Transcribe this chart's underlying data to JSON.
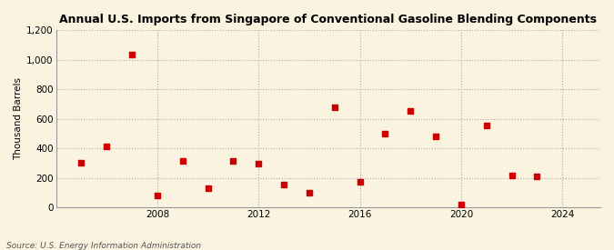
{
  "title": "Annual U.S. Imports from Singapore of Conventional Gasoline Blending Components",
  "ylabel": "Thousand Barrels",
  "source": "Source: U.S. Energy Information Administration",
  "background_color": "#faf3e0",
  "plot_background_color": "#faf3e0",
  "marker_color": "#cc0000",
  "marker_size": 18,
  "years": [
    2005,
    2006,
    2007,
    2008,
    2009,
    2010,
    2011,
    2012,
    2013,
    2014,
    2015,
    2016,
    2017,
    2018,
    2019,
    2020,
    2021,
    2022,
    2023
  ],
  "values": [
    300,
    415,
    1035,
    80,
    315,
    130,
    315,
    295,
    155,
    100,
    680,
    170,
    500,
    655,
    480,
    20,
    555,
    215,
    210
  ],
  "xlim": [
    2004.0,
    2025.5
  ],
  "ylim": [
    0,
    1200
  ],
  "yticks": [
    0,
    200,
    400,
    600,
    800,
    1000,
    1200
  ],
  "ytick_labels": [
    "0",
    "200",
    "400",
    "600",
    "800",
    "1,000",
    "1,200"
  ],
  "xticks": [
    2008,
    2012,
    2016,
    2020,
    2024
  ],
  "grid_color": "#aaaaaa",
  "grid_linestyle": ":",
  "grid_linewidth": 0.8,
  "title_fontsize": 9.0,
  "ylabel_fontsize": 7.5,
  "tick_fontsize": 7.5,
  "source_fontsize": 6.5
}
